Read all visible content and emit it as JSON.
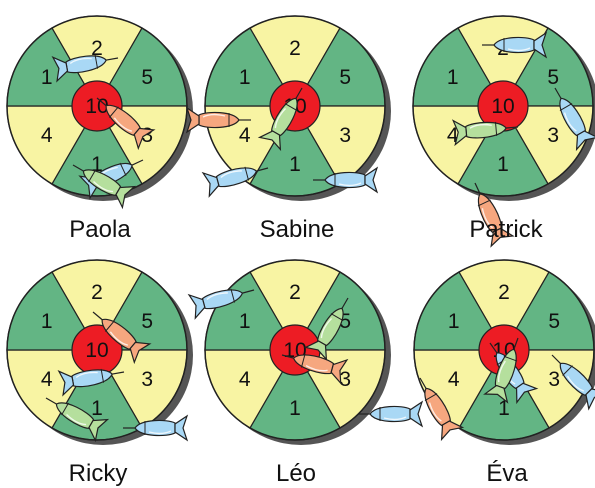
{
  "colors": {
    "green": "#63b584",
    "yellow": "#f8f4a3",
    "center": "#ed1c24",
    "rim": "#555555",
    "outline": "#222222",
    "dart_blue": "#a9d8f5",
    "dart_green": "#b5df9d",
    "dart_red": "#f6a77f"
  },
  "board": {
    "center_value": "10",
    "sectors": [
      {
        "label": "2",
        "color": "yellow"
      },
      {
        "label": "5",
        "color": "green"
      },
      {
        "label": "3",
        "color": "yellow"
      },
      {
        "label": "1",
        "color": "green"
      },
      {
        "label": "4",
        "color": "yellow"
      },
      {
        "label": "1",
        "color": "green"
      }
    ]
  },
  "players": [
    {
      "name": "Paola",
      "darts": [
        {
          "color": "dart_red",
          "hits": "10"
        },
        {
          "color": "dart_blue",
          "hits": "5"
        },
        {
          "color": "dart_blue",
          "hits": "3"
        },
        {
          "color": "dart_green",
          "hits": "1"
        }
      ]
    },
    {
      "name": "Sabine",
      "darts": [
        {
          "color": "dart_green",
          "hits": "10"
        },
        {
          "color": "dart_red",
          "hits": "4"
        },
        {
          "color": "dart_blue",
          "hits": "1"
        },
        {
          "color": "dart_blue",
          "hits": "1"
        }
      ]
    },
    {
      "name": "Patrick",
      "darts": [
        {
          "color": "dart_blue",
          "hits": "2"
        },
        {
          "color": "dart_blue",
          "hits": "5"
        },
        {
          "color": "dart_green",
          "hits": "10"
        },
        {
          "color": "dart_red",
          "hits": "1"
        }
      ]
    },
    {
      "name": "Ricky",
      "darts": [
        {
          "color": "dart_red",
          "hits": "2"
        },
        {
          "color": "dart_blue",
          "hits": "10"
        },
        {
          "color": "dart_blue",
          "hits": "1"
        },
        {
          "color": "dart_green",
          "hits": "4"
        }
      ]
    },
    {
      "name": "Léo",
      "darts": [
        {
          "color": "dart_blue",
          "hits": "2"
        },
        {
          "color": "dart_green",
          "hits": "5"
        },
        {
          "color": "dart_red",
          "hits": "10"
        },
        {
          "color": "dart_blue",
          "hits": "3"
        }
      ]
    },
    {
      "name": "Éva",
      "darts": [
        {
          "color": "dart_blue",
          "hits": "10"
        },
        {
          "color": "dart_green",
          "hits": "10"
        },
        {
          "color": "dart_red",
          "hits": "4"
        },
        {
          "color": "dart_blue",
          "hits": "5"
        }
      ]
    }
  ]
}
